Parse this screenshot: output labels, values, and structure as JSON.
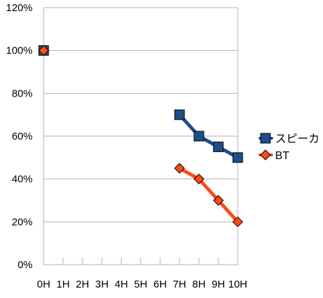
{
  "chart_data": {
    "type": "line",
    "title": "",
    "xlabel": "",
    "ylabel": "",
    "categories": [
      "0H",
      "1H",
      "2H",
      "3H",
      "4H",
      "5H",
      "6H",
      "7H",
      "8H",
      "9H",
      "10H"
    ],
    "y_ticks": [
      "0%",
      "20%",
      "40%",
      "60%",
      "80%",
      "100%",
      "120%"
    ],
    "ylim": [
      0,
      120
    ],
    "y_unit": "%",
    "grid": true,
    "legend_position": "right",
    "series": [
      {
        "name": "スピーカ",
        "marker": "square",
        "color": "#1f4e8a",
        "values": [
          100,
          null,
          null,
          null,
          null,
          null,
          null,
          70,
          60,
          55,
          50
        ]
      },
      {
        "name": "BT",
        "marker": "diamond",
        "color": "#ff4a1a",
        "values": [
          100,
          null,
          null,
          null,
          null,
          null,
          null,
          45,
          40,
          30,
          20
        ]
      }
    ]
  }
}
